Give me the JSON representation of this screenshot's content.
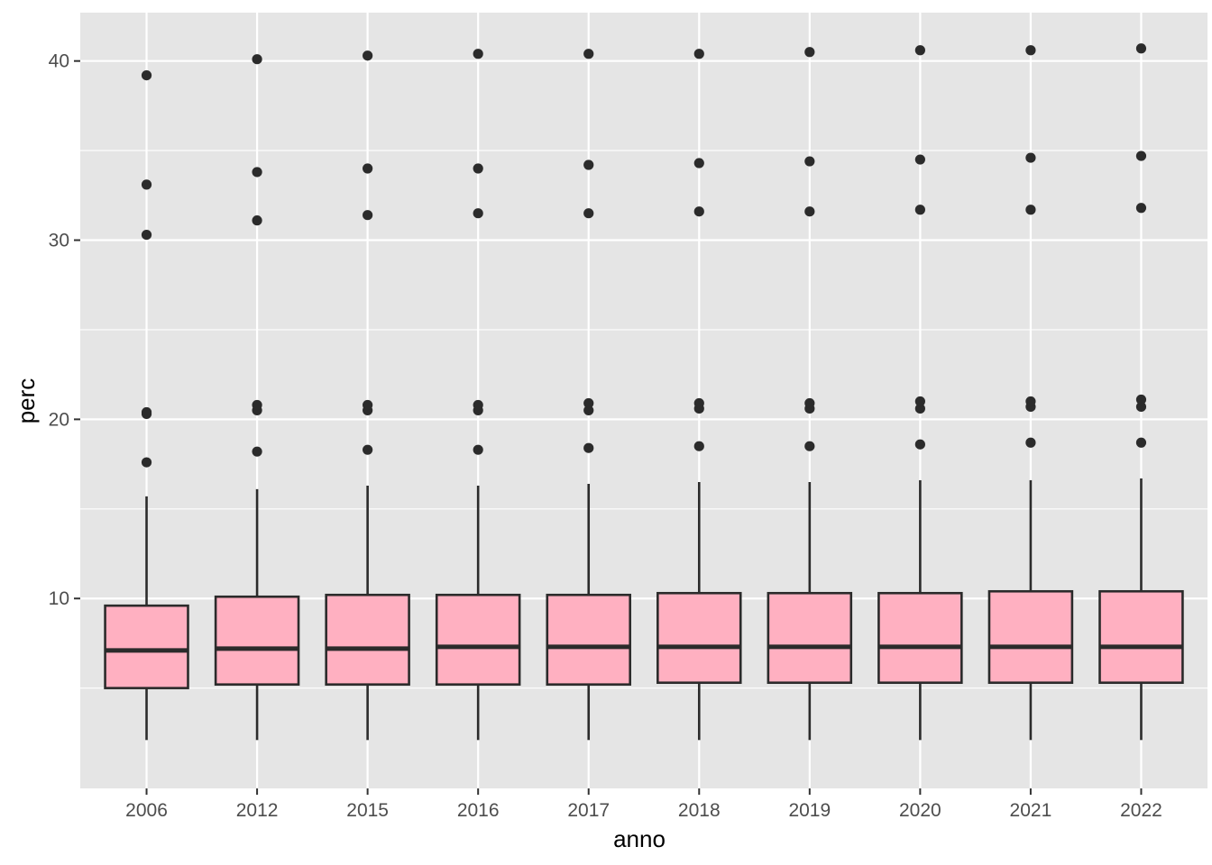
{
  "chart_data": {
    "type": "boxplot",
    "title": "",
    "xlabel": "anno",
    "ylabel": "perc",
    "ylim": [
      -0.6,
      42.7
    ],
    "y_ticks": [
      10,
      20,
      30,
      40
    ],
    "y_tick_labels": [
      "10",
      "20",
      "30",
      "40"
    ],
    "grid": true,
    "legend": "none",
    "colors": {
      "panel_background": "#e5e5e5",
      "grid_line": "#ffffff",
      "box_fill": "#ffb0c1",
      "box_stroke": "#2b2b2b",
      "outlier": "#2b2b2b"
    },
    "categories": [
      "2006",
      "2012",
      "2015",
      "2016",
      "2017",
      "2018",
      "2019",
      "2020",
      "2021",
      "2022"
    ],
    "boxes": [
      {
        "x": "2006",
        "whisker_low": 2.1,
        "q1": 5.0,
        "median": 7.1,
        "q3": 9.6,
        "whisker_high": 15.7,
        "outliers": [
          17.6,
          20.3,
          20.4,
          30.3,
          33.1,
          39.2
        ]
      },
      {
        "x": "2012",
        "whisker_low": 2.1,
        "q1": 5.2,
        "median": 7.2,
        "q3": 10.1,
        "whisker_high": 16.1,
        "outliers": [
          18.2,
          20.5,
          20.8,
          31.1,
          33.8,
          40.1
        ]
      },
      {
        "x": "2015",
        "whisker_low": 2.1,
        "q1": 5.2,
        "median": 7.2,
        "q3": 10.2,
        "whisker_high": 16.3,
        "outliers": [
          18.3,
          20.5,
          20.8,
          31.4,
          34.0,
          40.3
        ]
      },
      {
        "x": "2016",
        "whisker_low": 2.1,
        "q1": 5.2,
        "median": 7.3,
        "q3": 10.2,
        "whisker_high": 16.3,
        "outliers": [
          18.3,
          20.5,
          20.8,
          31.5,
          34.0,
          40.4
        ]
      },
      {
        "x": "2017",
        "whisker_low": 2.1,
        "q1": 5.2,
        "median": 7.3,
        "q3": 10.2,
        "whisker_high": 16.4,
        "outliers": [
          18.4,
          20.5,
          20.9,
          31.5,
          34.2,
          40.4
        ]
      },
      {
        "x": "2018",
        "whisker_low": 2.1,
        "q1": 5.3,
        "median": 7.3,
        "q3": 10.3,
        "whisker_high": 16.5,
        "outliers": [
          18.5,
          20.6,
          20.9,
          31.6,
          34.3,
          40.4
        ]
      },
      {
        "x": "2019",
        "whisker_low": 2.1,
        "q1": 5.3,
        "median": 7.3,
        "q3": 10.3,
        "whisker_high": 16.5,
        "outliers": [
          18.5,
          20.6,
          20.9,
          31.6,
          34.4,
          40.5
        ]
      },
      {
        "x": "2020",
        "whisker_low": 2.1,
        "q1": 5.3,
        "median": 7.3,
        "q3": 10.3,
        "whisker_high": 16.6,
        "outliers": [
          18.6,
          20.6,
          21.0,
          31.7,
          34.5,
          40.6
        ]
      },
      {
        "x": "2021",
        "whisker_low": 2.1,
        "q1": 5.3,
        "median": 7.3,
        "q3": 10.4,
        "whisker_high": 16.6,
        "outliers": [
          18.7,
          20.7,
          21.0,
          31.7,
          34.6,
          40.6
        ]
      },
      {
        "x": "2022",
        "whisker_low": 2.1,
        "q1": 5.3,
        "median": 7.3,
        "q3": 10.4,
        "whisker_high": 16.7,
        "outliers": [
          18.7,
          20.7,
          21.1,
          31.8,
          34.7,
          40.7
        ]
      }
    ]
  }
}
